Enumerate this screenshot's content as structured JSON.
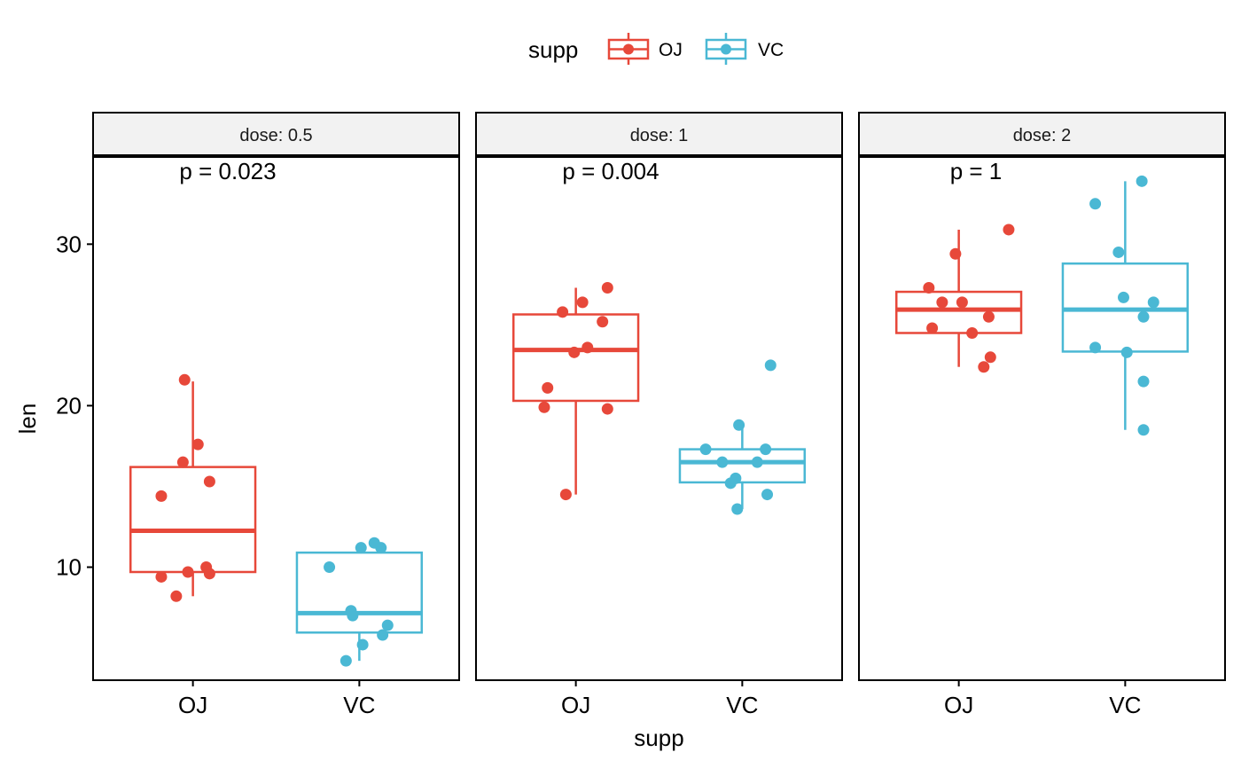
{
  "chart_data": {
    "type": "boxplot",
    "facet_variable": "dose",
    "xlabel": "supp",
    "ylabel": "len",
    "ylim": [
      3,
      35.4
    ],
    "yticks": [
      10,
      20,
      30
    ],
    "categories": [
      "OJ",
      "VC"
    ],
    "legend": {
      "title": "supp",
      "placement": "top",
      "entries": [
        {
          "name": "OJ",
          "color": "#E7483A"
        },
        {
          "name": "VC",
          "color": "#4AB8D4"
        }
      ]
    },
    "panels": [
      {
        "strip_label": "dose: 0.5",
        "p_label": "p = 0.023",
        "groups": [
          {
            "name": "OJ",
            "min": 8.2,
            "q1": 9.7,
            "median": 12.25,
            "q3": 16.2,
            "max": 21.5,
            "points": [
              [
                -0.05,
                21.6
              ],
              [
                -0.19,
                14.4
              ],
              [
                0.1,
                15.3
              ],
              [
                0.03,
                17.6
              ],
              [
                -0.06,
                16.5
              ],
              [
                -0.03,
                9.7
              ],
              [
                0.08,
                10.0
              ],
              [
                0.1,
                9.6
              ],
              [
                -0.19,
                9.4
              ],
              [
                -0.1,
                8.2
              ]
            ]
          },
          {
            "name": "VC",
            "min": 4.2,
            "q1": 5.95,
            "median": 7.15,
            "q3": 10.9,
            "max": 11.5,
            "points": [
              [
                -0.18,
                10.0
              ],
              [
                -0.05,
                7.3
              ],
              [
                -0.04,
                7.0
              ],
              [
                0.01,
                11.2
              ],
              [
                0.09,
                11.5
              ],
              [
                0.13,
                11.2
              ],
              [
                0.17,
                6.4
              ],
              [
                0.14,
                5.8
              ],
              [
                0.02,
                5.2
              ],
              [
                -0.08,
                4.2
              ]
            ]
          }
        ]
      },
      {
        "strip_label": "dose: 1",
        "p_label": "p = 0.004",
        "groups": [
          {
            "name": "OJ",
            "min": 14.5,
            "q1": 20.3,
            "median": 23.45,
            "q3": 25.65,
            "max": 27.3,
            "points": [
              [
                -0.19,
                19.9
              ],
              [
                -0.17,
                21.1
              ],
              [
                -0.08,
                25.8
              ],
              [
                -0.01,
                23.3
              ],
              [
                0.07,
                23.6
              ],
              [
                0.16,
                25.2
              ],
              [
                0.19,
                27.3
              ],
              [
                0.04,
                26.4
              ],
              [
                0.19,
                19.8
              ],
              [
                -0.06,
                14.5
              ]
            ]
          },
          {
            "name": "VC",
            "min": 13.6,
            "q1": 15.25,
            "median": 16.5,
            "q3": 17.3,
            "max": 18.8,
            "points": [
              [
                -0.22,
                17.3
              ],
              [
                -0.12,
                16.5
              ],
              [
                -0.07,
                15.2
              ],
              [
                -0.04,
                15.5
              ],
              [
                -0.03,
                13.6
              ],
              [
                -0.02,
                18.8
              ],
              [
                0.09,
                16.5
              ],
              [
                0.14,
                17.3
              ],
              [
                0.15,
                14.5
              ],
              [
                0.17,
                22.5
              ]
            ]
          }
        ]
      },
      {
        "strip_label": "dose: 2",
        "p_label": "p = 1",
        "groups": [
          {
            "name": "OJ",
            "min": 22.4,
            "q1": 24.5,
            "median": 25.95,
            "q3": 27.05,
            "max": 30.9,
            "points": [
              [
                -0.18,
                27.3
              ],
              [
                -0.16,
                24.8
              ],
              [
                -0.1,
                26.4
              ],
              [
                -0.02,
                29.4
              ],
              [
                0.02,
                26.4
              ],
              [
                0.08,
                24.5
              ],
              [
                0.15,
                22.4
              ],
              [
                0.18,
                25.5
              ],
              [
                0.19,
                23.0
              ],
              [
                0.3,
                30.9
              ]
            ]
          },
          {
            "name": "VC",
            "min": 18.5,
            "q1": 23.35,
            "median": 25.95,
            "q3": 28.8,
            "max": 33.9,
            "points": [
              [
                -0.18,
                23.6
              ],
              [
                -0.18,
                32.5
              ],
              [
                -0.04,
                29.5
              ],
              [
                -0.01,
                26.7
              ],
              [
                0.01,
                23.3
              ],
              [
                0.1,
                33.9
              ],
              [
                0.11,
                25.5
              ],
              [
                0.11,
                21.5
              ],
              [
                0.11,
                18.5
              ],
              [
                0.17,
                26.4
              ]
            ]
          }
        ]
      }
    ]
  }
}
